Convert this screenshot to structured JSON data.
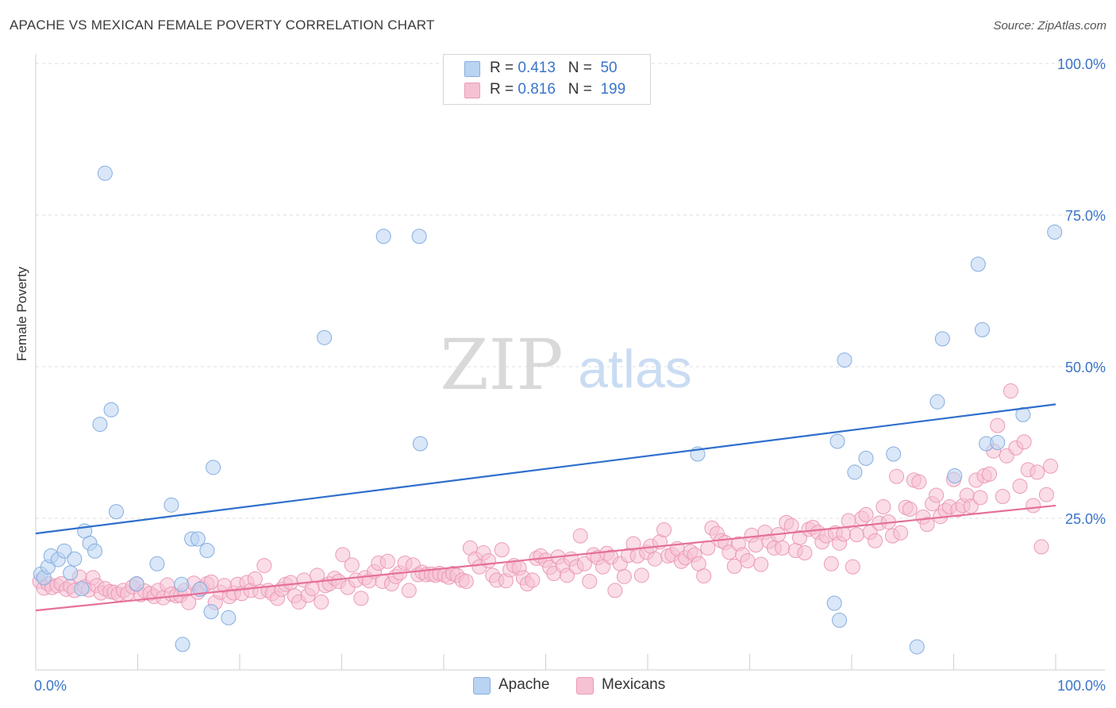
{
  "header": {
    "title": "APACHE VS MEXICAN FEMALE POVERTY CORRELATION CHART",
    "source": "Source: ZipAtlas.com"
  },
  "watermark": {
    "zip": "ZIP",
    "atlas": "atlas"
  },
  "legend": {
    "rows": [
      {
        "r_label": "R =",
        "r_value": "0.413",
        "n_label": "N =",
        "n_value": "50"
      },
      {
        "r_label": "R =",
        "r_value": "0.816",
        "n_label": "N =",
        "n_value": "199"
      }
    ],
    "bottom": [
      "Apache",
      "Mexicans"
    ]
  },
  "colors": {
    "apache_fill": "#b9d3f2",
    "apache_stroke": "#86aee0",
    "apache_line": "#2f6fcc",
    "mexican_fill": "#f6c1d3",
    "mexican_stroke": "#ec9ab7",
    "mexican_line": "#e5709a",
    "tick_text": "#3a74c9"
  },
  "chart_data": {
    "type": "scatter",
    "title": "APACHE VS MEXICAN FEMALE POVERTY CORRELATION CHART",
    "xlabel": "",
    "ylabel": "Female Poverty",
    "xlim": [
      0,
      100
    ],
    "ylim": [
      0,
      100
    ],
    "x_tick_labels": [
      "0.0%",
      "100.0%"
    ],
    "y_ticks": [
      25,
      50,
      75,
      100
    ],
    "y_tick_labels": [
      "25.0%",
      "50.0%",
      "75.0%",
      "100.0%"
    ],
    "grid": true,
    "series": [
      {
        "name": "Apache",
        "r": 0.413,
        "n": 50,
        "trend": {
          "x": [
            0,
            100
          ],
          "y": [
            22.5,
            43.8
          ]
        },
        "points": [
          [
            0.5,
            15.8
          ],
          [
            0.8,
            15.2
          ],
          [
            1.2,
            17.0
          ],
          [
            1.5,
            18.8
          ],
          [
            2.2,
            18.2
          ],
          [
            2.8,
            19.6
          ],
          [
            3.4,
            16.0
          ],
          [
            3.8,
            18.3
          ],
          [
            4.5,
            13.4
          ],
          [
            4.8,
            22.9
          ],
          [
            5.3,
            20.9
          ],
          [
            5.8,
            19.6
          ],
          [
            6.3,
            40.5
          ],
          [
            6.8,
            81.9
          ],
          [
            7.4,
            42.9
          ],
          [
            7.9,
            26.1
          ],
          [
            9.9,
            14.2
          ],
          [
            11.9,
            17.5
          ],
          [
            13.3,
            27.2
          ],
          [
            14.3,
            14.1
          ],
          [
            14.4,
            4.2
          ],
          [
            15.3,
            21.6
          ],
          [
            15.9,
            21.6
          ],
          [
            16.1,
            13.3
          ],
          [
            16.8,
            19.7
          ],
          [
            17.2,
            9.6
          ],
          [
            17.4,
            33.4
          ],
          [
            18.9,
            8.6
          ],
          [
            28.3,
            54.8
          ],
          [
            34.1,
            71.5
          ],
          [
            37.6,
            71.5
          ],
          [
            37.7,
            37.3
          ],
          [
            64.9,
            35.6
          ],
          [
            78.3,
            11.0
          ],
          [
            78.6,
            37.7
          ],
          [
            78.8,
            8.2
          ],
          [
            79.3,
            51.1
          ],
          [
            80.3,
            32.6
          ],
          [
            81.4,
            34.9
          ],
          [
            84.1,
            35.6
          ],
          [
            86.4,
            3.8
          ],
          [
            88.4,
            44.2
          ],
          [
            88.9,
            54.6
          ],
          [
            90.1,
            32.0
          ],
          [
            92.4,
            66.9
          ],
          [
            92.8,
            56.1
          ],
          [
            93.2,
            37.3
          ],
          [
            94.3,
            37.5
          ],
          [
            96.8,
            42.1
          ],
          [
            99.9,
            72.2
          ]
        ]
      },
      {
        "name": "Mexicans",
        "r": 0.816,
        "n": 199,
        "trend": {
          "x": [
            0,
            100
          ],
          "y": [
            9.8,
            27.1
          ]
        },
        "points": [
          [
            0.4,
            14.6
          ],
          [
            0.8,
            13.5
          ],
          [
            1.2,
            14.2
          ],
          [
            1.6,
            13.6
          ],
          [
            2.1,
            13.9
          ],
          [
            2.5,
            14.2
          ],
          [
            3.0,
            13.3
          ],
          [
            3.4,
            13.8
          ],
          [
            3.8,
            13.1
          ],
          [
            4.3,
            15.3
          ],
          [
            4.8,
            13.7
          ],
          [
            5.2,
            13.2
          ],
          [
            5.6,
            15.2
          ],
          [
            6.0,
            13.9
          ],
          [
            6.4,
            12.7
          ],
          [
            6.8,
            13.4
          ],
          [
            7.3,
            12.9
          ],
          [
            7.7,
            12.8
          ],
          [
            8.1,
            12.5
          ],
          [
            8.6,
            13.1
          ],
          [
            9.0,
            12.6
          ],
          [
            9.5,
            13.7
          ],
          [
            9.9,
            14.1
          ],
          [
            10.3,
            12.4
          ],
          [
            10.7,
            13.0
          ],
          [
            11.2,
            12.6
          ],
          [
            11.6,
            12.1
          ],
          [
            12.0,
            13.1
          ],
          [
            12.5,
            11.9
          ],
          [
            12.9,
            14.0
          ],
          [
            13.3,
            12.5
          ],
          [
            13.8,
            12.2
          ],
          [
            14.2,
            12.3
          ],
          [
            14.6,
            13.1
          ],
          [
            15.0,
            11.1
          ],
          [
            15.5,
            14.3
          ],
          [
            15.9,
            12.8
          ],
          [
            16.3,
            13.5
          ],
          [
            16.8,
            14.2
          ],
          [
            17.2,
            14.5
          ],
          [
            17.6,
            11.1
          ],
          [
            18.1,
            12.8
          ],
          [
            18.5,
            13.9
          ],
          [
            19.0,
            12.1
          ],
          [
            19.4,
            12.7
          ],
          [
            19.8,
            14.1
          ],
          [
            20.2,
            12.6
          ],
          [
            20.7,
            14.4
          ],
          [
            21.1,
            13.1
          ],
          [
            21.5,
            15.0
          ],
          [
            22.0,
            12.9
          ],
          [
            22.4,
            17.2
          ],
          [
            22.8,
            13.1
          ],
          [
            23.2,
            12.6
          ],
          [
            23.7,
            11.8
          ],
          [
            24.1,
            13.3
          ],
          [
            24.5,
            14.1
          ],
          [
            25.0,
            14.4
          ],
          [
            25.4,
            12.2
          ],
          [
            25.8,
            11.2
          ],
          [
            26.3,
            14.8
          ],
          [
            26.7,
            12.3
          ],
          [
            27.1,
            13.4
          ],
          [
            27.6,
            15.6
          ],
          [
            28.0,
            11.2
          ],
          [
            28.4,
            13.9
          ],
          [
            28.8,
            14.2
          ],
          [
            29.3,
            15.1
          ],
          [
            29.7,
            14.6
          ],
          [
            30.1,
            19.0
          ],
          [
            30.6,
            13.6
          ],
          [
            31.0,
            17.3
          ],
          [
            31.4,
            14.8
          ],
          [
            31.9,
            11.8
          ],
          [
            32.3,
            15.2
          ],
          [
            32.7,
            14.7
          ],
          [
            33.2,
            16.2
          ],
          [
            33.6,
            17.6
          ],
          [
            34.0,
            14.6
          ],
          [
            34.5,
            17.9
          ],
          [
            34.9,
            14.2
          ],
          [
            35.3,
            15.4
          ],
          [
            35.7,
            16.0
          ],
          [
            36.2,
            17.6
          ],
          [
            36.6,
            13.1
          ],
          [
            37.0,
            17.3
          ],
          [
            37.5,
            15.7
          ],
          [
            37.9,
            16.1
          ],
          [
            38.3,
            15.7
          ],
          [
            38.8,
            15.8
          ],
          [
            39.2,
            15.6
          ],
          [
            39.6,
            15.9
          ],
          [
            40.1,
            15.6
          ],
          [
            40.5,
            15.3
          ],
          [
            40.9,
            15.9
          ],
          [
            41.3,
            15.6
          ],
          [
            41.8,
            14.8
          ],
          [
            42.2,
            14.6
          ],
          [
            42.6,
            20.1
          ],
          [
            43.1,
            18.3
          ],
          [
            43.5,
            17.0
          ],
          [
            43.9,
            19.3
          ],
          [
            44.4,
            18.0
          ],
          [
            44.8,
            15.6
          ],
          [
            45.2,
            14.8
          ],
          [
            45.7,
            19.8
          ],
          [
            46.1,
            14.7
          ],
          [
            46.5,
            16.5
          ],
          [
            46.9,
            17.2
          ],
          [
            47.4,
            16.8
          ],
          [
            47.8,
            15.2
          ],
          [
            48.2,
            14.2
          ],
          [
            48.7,
            14.8
          ],
          [
            49.1,
            18.4
          ],
          [
            49.5,
            18.8
          ],
          [
            50.0,
            18.1
          ],
          [
            50.4,
            16.9
          ],
          [
            50.8,
            15.9
          ],
          [
            51.2,
            18.6
          ],
          [
            51.7,
            17.2
          ],
          [
            52.1,
            15.6
          ],
          [
            52.5,
            18.3
          ],
          [
            53.0,
            17.0
          ],
          [
            53.4,
            22.1
          ],
          [
            53.8,
            17.5
          ],
          [
            54.3,
            14.6
          ],
          [
            54.7,
            19.0
          ],
          [
            55.1,
            18.5
          ],
          [
            55.6,
            17.0
          ],
          [
            56.0,
            19.2
          ],
          [
            56.4,
            18.6
          ],
          [
            56.8,
            13.1
          ],
          [
            57.3,
            17.5
          ],
          [
            57.7,
            15.4
          ],
          [
            58.1,
            18.9
          ],
          [
            58.6,
            20.8
          ],
          [
            59.0,
            18.8
          ],
          [
            59.4,
            15.6
          ],
          [
            59.9,
            19.4
          ],
          [
            60.3,
            20.4
          ],
          [
            60.7,
            18.3
          ],
          [
            61.2,
            21.1
          ],
          [
            61.6,
            23.1
          ],
          [
            62.0,
            18.8
          ],
          [
            62.4,
            19.0
          ],
          [
            62.9,
            20.0
          ],
          [
            63.3,
            17.9
          ],
          [
            63.7,
            18.5
          ],
          [
            64.2,
            19.5
          ],
          [
            64.6,
            19.0
          ],
          [
            65.0,
            17.5
          ],
          [
            65.5,
            15.5
          ],
          [
            65.9,
            20.1
          ],
          [
            66.3,
            23.4
          ],
          [
            66.8,
            22.5
          ],
          [
            67.2,
            21.3
          ],
          [
            67.6,
            21.0
          ],
          [
            68.0,
            19.4
          ],
          [
            68.5,
            17.1
          ],
          [
            68.9,
            20.8
          ],
          [
            69.3,
            19.0
          ],
          [
            69.8,
            18.0
          ],
          [
            70.2,
            22.2
          ],
          [
            70.6,
            20.6
          ],
          [
            71.1,
            17.4
          ],
          [
            71.5,
            22.7
          ],
          [
            71.9,
            21.2
          ],
          [
            72.4,
            20.1
          ],
          [
            72.8,
            22.3
          ],
          [
            73.2,
            20.1
          ],
          [
            73.6,
            24.3
          ],
          [
            74.1,
            23.8
          ],
          [
            74.5,
            19.7
          ],
          [
            74.9,
            21.8
          ],
          [
            75.4,
            19.3
          ],
          [
            75.8,
            23.2
          ],
          [
            76.2,
            23.5
          ],
          [
            76.7,
            22.7
          ],
          [
            77.1,
            21.1
          ],
          [
            77.5,
            22.1
          ],
          [
            78.0,
            17.5
          ],
          [
            78.4,
            22.6
          ],
          [
            78.8,
            20.9
          ],
          [
            79.2,
            22.4
          ],
          [
            79.7,
            24.6
          ],
          [
            80.1,
            17.0
          ],
          [
            80.5,
            22.3
          ],
          [
            81.0,
            25.0
          ],
          [
            81.4,
            25.6
          ],
          [
            81.8,
            22.7
          ],
          [
            82.3,
            21.3
          ],
          [
            82.7,
            24.2
          ],
          [
            83.1,
            26.9
          ],
          [
            83.6,
            24.4
          ],
          [
            84.0,
            22.1
          ],
          [
            84.4,
            31.9
          ],
          [
            84.8,
            22.6
          ],
          [
            85.3,
            26.8
          ],
          [
            85.7,
            26.5
          ],
          [
            86.1,
            31.3
          ],
          [
            86.6,
            31.0
          ],
          [
            87.0,
            25.2
          ],
          [
            87.4,
            24.0
          ],
          [
            87.9,
            27.4
          ],
          [
            88.3,
            28.8
          ],
          [
            88.7,
            25.3
          ],
          [
            89.2,
            26.3
          ],
          [
            89.6,
            26.9
          ],
          [
            90.0,
            31.4
          ],
          [
            90.4,
            26.4
          ],
          [
            90.9,
            27.1
          ],
          [
            91.3,
            28.8
          ],
          [
            91.7,
            27.0
          ],
          [
            92.2,
            31.3
          ],
          [
            92.6,
            28.4
          ],
          [
            93.0,
            32.0
          ],
          [
            93.5,
            32.3
          ],
          [
            93.9,
            36.1
          ],
          [
            94.3,
            40.3
          ],
          [
            94.8,
            28.6
          ],
          [
            95.2,
            35.3
          ],
          [
            95.6,
            46.0
          ],
          [
            96.1,
            36.6
          ],
          [
            96.5,
            30.3
          ],
          [
            96.9,
            37.6
          ],
          [
            97.3,
            33.0
          ],
          [
            97.8,
            27.1
          ],
          [
            98.2,
            32.6
          ],
          [
            98.6,
            20.3
          ],
          [
            99.1,
            28.9
          ],
          [
            99.5,
            33.6
          ]
        ]
      }
    ]
  }
}
